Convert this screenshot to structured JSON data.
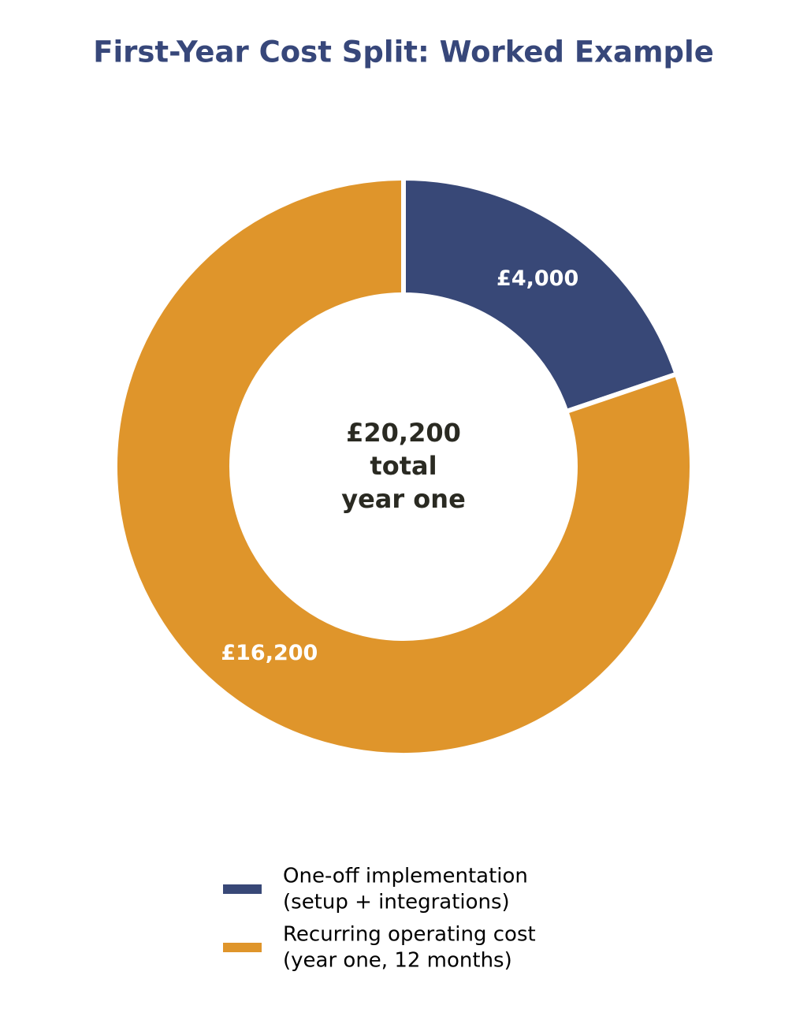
{
  "chart_data": {
    "type": "donut",
    "title": "First-Year Cost Split: Worked Example",
    "center_label": "£20,200\ntotal\nyear one",
    "series": [
      {
        "name": "One-off implementation\n(setup + integrations)",
        "color": "#384877",
        "values": [
          4000
        ],
        "value_labels": [
          "£4,000"
        ]
      },
      {
        "name": "Recurring operating cost\n(year one, 12 months)",
        "color": "#df952b",
        "values": [
          16200
        ],
        "value_labels": [
          "£16,200"
        ]
      }
    ]
  }
}
